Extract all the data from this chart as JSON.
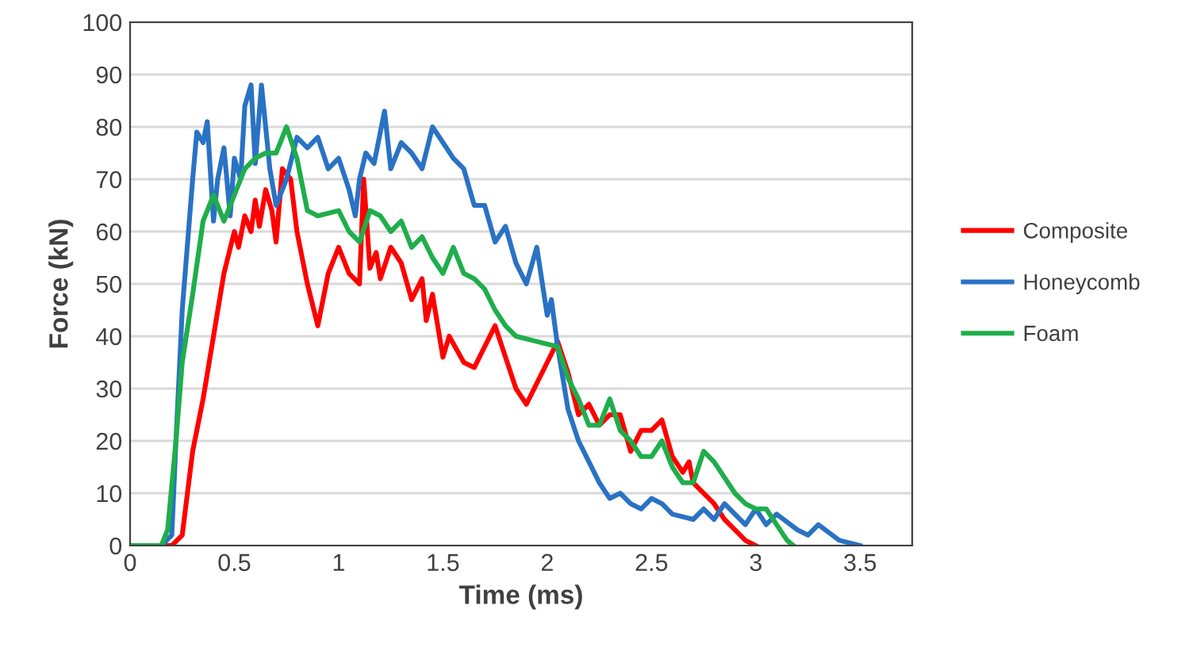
{
  "chart_data": {
    "type": "line",
    "xlabel": "Time (ms)",
    "ylabel": "Force (kN)",
    "xlim": [
      0,
      3.75
    ],
    "xticks": [
      0,
      0.5,
      1,
      1.5,
      2,
      2.5,
      3,
      3.5
    ],
    "ylim": [
      0,
      100
    ],
    "yticks": [
      0,
      10,
      20,
      30,
      40,
      50,
      60,
      70,
      80,
      90,
      100
    ],
    "grid": "y",
    "legend": "right",
    "marker": "none",
    "line_style": "solid",
    "series": [
      {
        "name": "Composite",
        "color": "#ff0000",
        "x": [
          0,
          0.2,
          0.25,
          0.3,
          0.35,
          0.4,
          0.45,
          0.5,
          0.52,
          0.55,
          0.58,
          0.6,
          0.62,
          0.65,
          0.68,
          0.7,
          0.73,
          0.77,
          0.8,
          0.85,
          0.9,
          0.95,
          1.0,
          1.05,
          1.1,
          1.12,
          1.15,
          1.18,
          1.2,
          1.25,
          1.3,
          1.35,
          1.4,
          1.42,
          1.45,
          1.5,
          1.53,
          1.6,
          1.65,
          1.75,
          1.8,
          1.85,
          1.9,
          2.0,
          2.05,
          2.1,
          2.15,
          2.2,
          2.25,
          2.3,
          2.35,
          2.4,
          2.45,
          2.5,
          2.55,
          2.6,
          2.65,
          2.68,
          2.7,
          2.8,
          2.85,
          2.9,
          2.95,
          3.0
        ],
        "values": [
          0,
          0,
          2,
          18,
          28,
          40,
          52,
          60,
          57,
          63,
          60,
          66,
          61,
          68,
          64,
          58,
          72,
          70,
          60,
          50,
          42,
          52,
          57,
          52,
          50,
          70,
          53,
          56,
          51,
          57,
          54,
          47,
          51,
          43,
          48,
          36,
          40,
          35,
          34,
          42,
          36,
          30,
          27,
          35,
          39,
          33,
          25,
          27,
          23,
          25,
          25,
          18,
          22,
          22,
          24,
          17,
          14,
          16,
          12,
          8,
          5,
          3,
          1,
          0
        ]
      },
      {
        "name": "Honeycomb",
        "color": "#2a72c4",
        "x": [
          0,
          0.15,
          0.2,
          0.22,
          0.25,
          0.28,
          0.3,
          0.32,
          0.35,
          0.37,
          0.4,
          0.42,
          0.45,
          0.48,
          0.5,
          0.53,
          0.55,
          0.58,
          0.6,
          0.63,
          0.67,
          0.7,
          0.75,
          0.8,
          0.85,
          0.9,
          0.95,
          1.0,
          1.05,
          1.08,
          1.1,
          1.13,
          1.17,
          1.22,
          1.25,
          1.3,
          1.35,
          1.4,
          1.45,
          1.5,
          1.55,
          1.6,
          1.65,
          1.7,
          1.75,
          1.8,
          1.85,
          1.9,
          1.95,
          2.0,
          2.02,
          2.05,
          2.1,
          2.15,
          2.2,
          2.25,
          2.3,
          2.35,
          2.4,
          2.45,
          2.5,
          2.55,
          2.6,
          2.7,
          2.75,
          2.8,
          2.85,
          2.9,
          2.95,
          3.0,
          3.05,
          3.1,
          3.2,
          3.25,
          3.3,
          3.4,
          3.5
        ],
        "values": [
          0,
          0,
          2,
          20,
          45,
          60,
          70,
          79,
          77,
          81,
          62,
          70,
          76,
          63,
          74,
          70,
          84,
          88,
          73,
          88,
          72,
          65,
          70,
          78,
          76,
          78,
          72,
          74,
          68,
          63,
          70,
          75,
          73,
          83,
          72,
          77,
          75,
          72,
          80,
          77,
          74,
          72,
          65,
          65,
          58,
          61,
          54,
          50,
          57,
          44,
          47,
          38,
          26,
          20,
          16,
          12,
          9,
          10,
          8,
          7,
          9,
          8,
          6,
          5,
          7,
          5,
          8,
          6,
          4,
          7,
          4,
          6,
          3,
          2,
          4,
          1,
          0
        ]
      },
      {
        "name": "Foam",
        "color": "#1fae4b",
        "x": [
          0,
          0.15,
          0.18,
          0.22,
          0.25,
          0.3,
          0.35,
          0.4,
          0.45,
          0.5,
          0.55,
          0.6,
          0.65,
          0.7,
          0.75,
          0.8,
          0.85,
          0.9,
          1.0,
          1.05,
          1.1,
          1.15,
          1.2,
          1.25,
          1.3,
          1.35,
          1.4,
          1.45,
          1.5,
          1.55,
          1.6,
          1.65,
          1.7,
          1.75,
          1.8,
          1.85,
          1.95,
          2.05,
          2.1,
          2.15,
          2.2,
          2.25,
          2.3,
          2.35,
          2.4,
          2.45,
          2.5,
          2.55,
          2.6,
          2.65,
          2.7,
          2.75,
          2.8,
          2.9,
          2.95,
          3.0,
          3.05,
          3.1,
          3.15,
          3.18
        ],
        "values": [
          0,
          0,
          3,
          20,
          35,
          48,
          62,
          67,
          62,
          67,
          72,
          74,
          75,
          75,
          80,
          74,
          64,
          63,
          64,
          60,
          58,
          64,
          63,
          60,
          62,
          57,
          59,
          55,
          52,
          57,
          52,
          51,
          49,
          45,
          42,
          40,
          39,
          38,
          32,
          28,
          23,
          23,
          28,
          22,
          20,
          17,
          17,
          20,
          15,
          12,
          12,
          18,
          16,
          10,
          8,
          7,
          7,
          4,
          1,
          0
        ]
      }
    ]
  }
}
